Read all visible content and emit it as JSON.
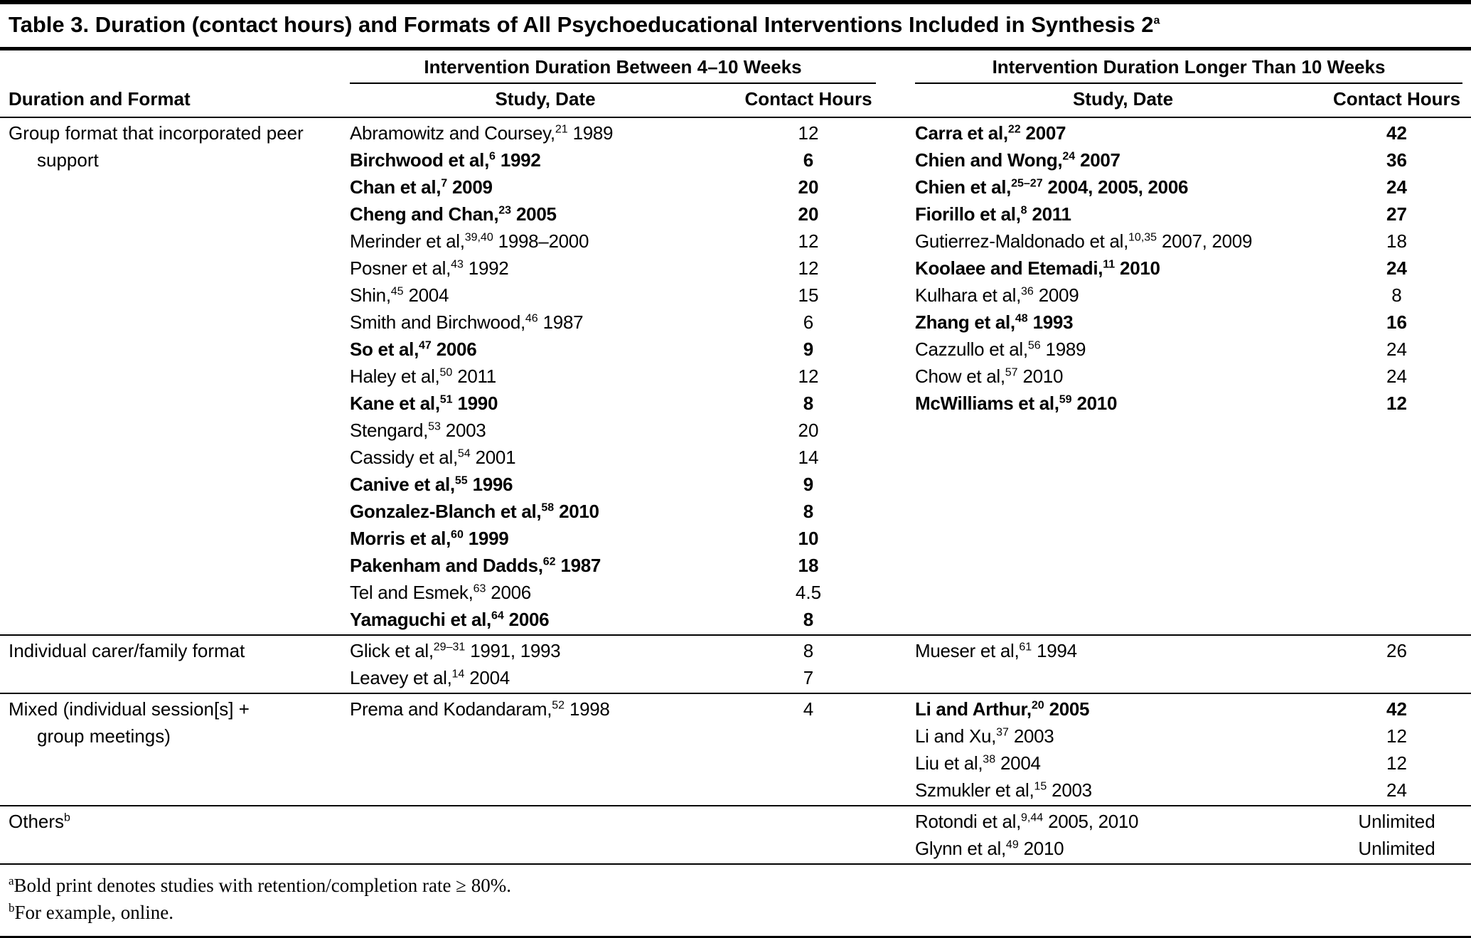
{
  "title": {
    "text": "Table 3. Duration (contact hours) and Formats of All Psychoeducational Interventions Included in Synthesis 2",
    "sup": "a"
  },
  "header": {
    "left_span": "Intervention Duration Between 4–10 Weeks",
    "right_span": "Intervention Duration Longer Than 10 Weeks",
    "format_col": "Duration and Format",
    "study_col": "Study, Date",
    "hours_col": "Contact Hours"
  },
  "groups": [
    {
      "format_lines": [
        "Group format that incorporated peer",
        "support"
      ],
      "left": [
        {
          "pre": "Abramowitz and Coursey,",
          "sup": "21",
          "post": " 1989",
          "hours": "12",
          "bold": false
        },
        {
          "pre": "Birchwood et al,",
          "sup": "6",
          "post": " 1992",
          "hours": "6",
          "bold": true
        },
        {
          "pre": "Chan et al,",
          "sup": "7",
          "post": " 2009",
          "hours": "20",
          "bold": true
        },
        {
          "pre": "Cheng and Chan,",
          "sup": "23",
          "post": " 2005",
          "hours": "20",
          "bold": true
        },
        {
          "pre": "Merinder et al,",
          "sup": "39,40",
          "post": " 1998–2000",
          "hours": "12",
          "bold": false
        },
        {
          "pre": "Posner et al,",
          "sup": "43",
          "post": " 1992",
          "hours": "12",
          "bold": false
        },
        {
          "pre": "Shin,",
          "sup": "45",
          "post": " 2004",
          "hours": "15",
          "bold": false
        },
        {
          "pre": "Smith and Birchwood,",
          "sup": "46",
          "post": " 1987",
          "hours": "6",
          "bold": false
        },
        {
          "pre": "So et al,",
          "sup": "47",
          "post": " 2006",
          "hours": "9",
          "bold": true
        },
        {
          "pre": "Haley et al,",
          "sup": "50",
          "post": " 2011",
          "hours": "12",
          "bold": false
        },
        {
          "pre": "Kane et al,",
          "sup": "51",
          "post": " 1990",
          "hours": "8",
          "bold": true
        },
        {
          "pre": "Stengard,",
          "sup": "53",
          "post": " 2003",
          "hours": "20",
          "bold": false
        },
        {
          "pre": "Cassidy et al,",
          "sup": "54",
          "post": " 2001",
          "hours": "14",
          "bold": false
        },
        {
          "pre": "Canive et al,",
          "sup": "55",
          "post": " 1996",
          "hours": "9",
          "bold": true
        },
        {
          "pre": "Gonzalez-Blanch et al,",
          "sup": "58",
          "post": " 2010",
          "hours": "8",
          "bold": true
        },
        {
          "pre": "Morris et al,",
          "sup": "60",
          "post": " 1999",
          "hours": "10",
          "bold": true
        },
        {
          "pre": "Pakenham and Dadds,",
          "sup": "62",
          "post": " 1987",
          "hours": "18",
          "bold": true
        },
        {
          "pre": "Tel and Esmek,",
          "sup": "63",
          "post": " 2006",
          "hours": "4.5",
          "bold": false
        },
        {
          "pre": "Yamaguchi et al,",
          "sup": "64",
          "post": " 2006",
          "hours": "8",
          "bold": true
        }
      ],
      "right": [
        {
          "pre": "Carra et al,",
          "sup": "22",
          "post": " 2007",
          "hours": "42",
          "bold": true
        },
        {
          "pre": "Chien and Wong,",
          "sup": "24",
          "post": " 2007",
          "hours": "36",
          "bold": true
        },
        {
          "pre": "Chien et al,",
          "sup": "25–27",
          "post": " 2004, 2005, 2006",
          "hours": "24",
          "bold": true
        },
        {
          "pre": "Fiorillo et al,",
          "sup": "8",
          "post": " 2011",
          "hours": "27",
          "bold": true
        },
        {
          "pre": "Gutierrez-Maldonado et al,",
          "sup": "10,35",
          "post": " 2007, 2009",
          "hours": "18",
          "bold": false
        },
        {
          "pre": "Koolaee and Etemadi,",
          "sup": "11",
          "post": " 2010",
          "hours": "24",
          "bold": true
        },
        {
          "pre": "Kulhara et al,",
          "sup": "36",
          "post": " 2009",
          "hours": "8",
          "bold": false
        },
        {
          "pre": "Zhang et al,",
          "sup": "48",
          "post": " 1993",
          "hours": "16",
          "bold": true
        },
        {
          "pre": "Cazzullo et al,",
          "sup": "56",
          "post": " 1989",
          "hours": "24",
          "bold": false
        },
        {
          "pre": "Chow et al,",
          "sup": "57",
          "post": " 2010",
          "hours": "24",
          "bold": false
        },
        {
          "pre": "McWilliams et al,",
          "sup": "59",
          "post": " 2010",
          "hours": "12",
          "bold": true
        }
      ]
    },
    {
      "format_lines": [
        "Individual carer/family format"
      ],
      "left": [
        {
          "pre": "Glick et al,",
          "sup": "29–31",
          "post": " 1991, 1993",
          "hours": "8",
          "bold": false
        },
        {
          "pre": "Leavey et al,",
          "sup": "14",
          "post": " 2004",
          "hours": "7",
          "bold": false
        }
      ],
      "right": [
        {
          "pre": "Mueser et al,",
          "sup": "61",
          "post": " 1994",
          "hours": "26",
          "bold": false
        }
      ]
    },
    {
      "format_lines": [
        "Mixed (individual session[s] +",
        "group meetings)"
      ],
      "left": [
        {
          "pre": "Prema and Kodandaram,",
          "sup": "52",
          "post": " 1998",
          "hours": "4",
          "bold": false
        }
      ],
      "right": [
        {
          "pre": "Li and Arthur,",
          "sup": "20",
          "post": " 2005",
          "hours": "42",
          "bold": true
        },
        {
          "pre": "Li and Xu,",
          "sup": "37",
          "post": " 2003",
          "hours": "12",
          "bold": false
        },
        {
          "pre": "Liu et al,",
          "sup": "38",
          "post": " 2004",
          "hours": "12",
          "bold": false
        },
        {
          "pre": "Szmukler et al,",
          "sup": "15",
          "post": " 2003",
          "hours": "24",
          "bold": false
        }
      ]
    },
    {
      "format_lines": [
        "Others"
      ],
      "sup": "b",
      "left": [],
      "right": [
        {
          "pre": "Rotondi et al,",
          "sup": "9,44",
          "post": " 2005, 2010",
          "hours": "Unlimited",
          "bold": false
        },
        {
          "pre": "Glynn et al,",
          "sup": "49",
          "post": " 2010",
          "hours": "Unlimited",
          "bold": false
        }
      ]
    }
  ],
  "footnotes": [
    {
      "marker": "a",
      "text": "Bold print denotes studies with retention/completion rate ≥ 80%."
    },
    {
      "marker": "b",
      "text": "For example, online."
    }
  ]
}
